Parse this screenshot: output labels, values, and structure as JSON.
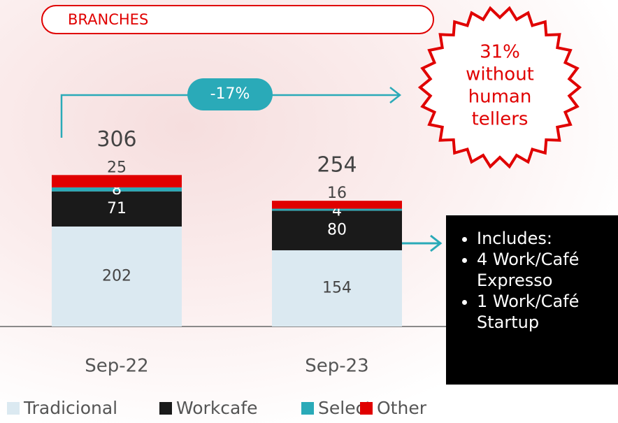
{
  "chart_data": {
    "type": "bar",
    "stacked": true,
    "title": "BRANCHES",
    "categories": [
      "Sep-22",
      "Sep-23"
    ],
    "series": [
      {
        "name": "Tradicional",
        "color": "#dbe9f1",
        "values": [
          202,
          154
        ]
      },
      {
        "name": "Workcafe",
        "color": "#1a1a1a",
        "values": [
          71,
          80
        ]
      },
      {
        "name": "Select",
        "color": "#2aaab8",
        "values": [
          8,
          4
        ]
      },
      {
        "name": "Other",
        "color": "#e00000",
        "values": [
          25,
          16
        ]
      }
    ],
    "totals": [
      306,
      254
    ],
    "change_label": "-17%",
    "badge_lines": [
      "31%",
      "without",
      "human",
      "tellers"
    ],
    "notes": [
      "Includes:",
      "4 Work/Café Expresso",
      "1 Work/Café Startup"
    ]
  }
}
